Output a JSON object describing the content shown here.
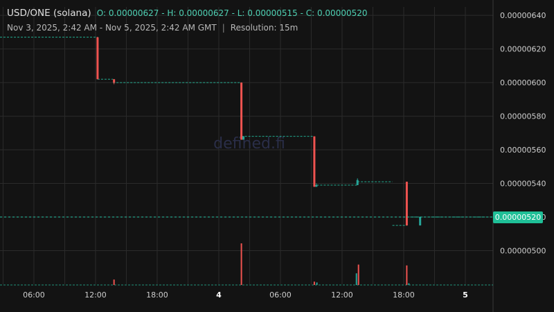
{
  "header": {
    "pair": "USD/ONE (solana)",
    "ohlc": "O: 0.00000627 - H: 0.00000627 - L: 0.00000515 - C: 0.00000520",
    "range": "Nov 3, 2025, 2:42 AM - Nov 5, 2025, 2:42 AM GMT",
    "separator": "|",
    "resolution": "Resolution: 15m"
  },
  "watermark": "defined.fi",
  "colors": {
    "background": "#131313",
    "grid": "#2b2b2b",
    "up": "#26a69a",
    "down": "#ef5350",
    "last_price_line": "#26c6a6",
    "price_tag_bg": "#1fbf97"
  },
  "chart_data": {
    "type": "candlestick",
    "x_label_ticks": [
      {
        "t": 6,
        "label": "06:00",
        "bold": false
      },
      {
        "t": 12,
        "label": "12:00",
        "bold": false
      },
      {
        "t": 18,
        "label": "18:00",
        "bold": false
      },
      {
        "t": 24,
        "label": "4",
        "bold": true
      },
      {
        "t": 30,
        "label": "06:00",
        "bold": false
      },
      {
        "t": 36,
        "label": "12:00",
        "bold": false
      },
      {
        "t": 42,
        "label": "18:00",
        "bold": false
      },
      {
        "t": 48,
        "label": "5",
        "bold": true
      }
    ],
    "y_ticks": [
      "0.00000500",
      "0.00000520",
      "0.00000540",
      "0.00000560",
      "0.00000580",
      "0.00000600",
      "0.00000620",
      "0.00000640"
    ],
    "y_tick_values": [
      5.0,
      5.2,
      5.4,
      5.6,
      5.8,
      6.0,
      6.2,
      6.4
    ],
    "ylim": [
      4.8,
      6.45
    ],
    "xlim": [
      2.7,
      50.7
    ],
    "last_price": 5.2,
    "last_price_label": "0.00000520",
    "segments": [
      {
        "from": 2.7,
        "to": 12.2,
        "price": 6.27
      },
      {
        "from": 12.2,
        "to": 13.7,
        "price": 6.02
      },
      {
        "from": 13.7,
        "to": 26.2,
        "price": 6.0
      },
      {
        "from": 26.2,
        "to": 33.2,
        "price": 5.68
      },
      {
        "from": 33.2,
        "to": 37.5,
        "price": 5.39
      },
      {
        "from": 37.5,
        "to": 40.9,
        "price": 5.41
      },
      {
        "from": 40.9,
        "to": 42.3,
        "price": 5.15
      },
      {
        "from": 42.3,
        "to": 50.7,
        "price": 5.2
      }
    ],
    "candles": [
      {
        "t": 12.2,
        "o": 6.27,
        "h": 6.27,
        "l": 6.02,
        "c": 6.02
      },
      {
        "t": 13.8,
        "o": 6.02,
        "h": 6.02,
        "l": 5.99,
        "c": 6.0
      },
      {
        "t": 26.2,
        "o": 6.0,
        "h": 6.0,
        "l": 5.66,
        "c": 5.66
      },
      {
        "t": 26.4,
        "o": 5.66,
        "h": 5.68,
        "l": 5.66,
        "c": 5.68
      },
      {
        "t": 33.3,
        "o": 5.68,
        "h": 5.68,
        "l": 5.38,
        "c": 5.38
      },
      {
        "t": 33.5,
        "o": 5.38,
        "h": 5.4,
        "l": 5.38,
        "c": 5.39
      },
      {
        "t": 37.5,
        "o": 5.39,
        "h": 5.43,
        "l": 5.39,
        "c": 5.42
      },
      {
        "t": 42.3,
        "o": 5.41,
        "h": 5.41,
        "l": 5.15,
        "c": 5.15
      },
      {
        "t": 43.6,
        "o": 5.15,
        "h": 5.2,
        "l": 5.15,
        "c": 5.2
      }
    ],
    "volumes": [
      {
        "t": 13.8,
        "v": 0.13,
        "dir": "down"
      },
      {
        "t": 26.2,
        "v": 1.0,
        "dir": "down"
      },
      {
        "t": 33.3,
        "v": 0.08,
        "dir": "down"
      },
      {
        "t": 33.55,
        "v": 0.06,
        "dir": "up"
      },
      {
        "t": 37.4,
        "v": 0.28,
        "dir": "up"
      },
      {
        "t": 37.6,
        "v": 0.49,
        "dir": "down"
      },
      {
        "t": 42.3,
        "v": 0.47,
        "dir": "down"
      },
      {
        "t": 42.5,
        "v": 0.04,
        "dir": "up"
      }
    ]
  }
}
